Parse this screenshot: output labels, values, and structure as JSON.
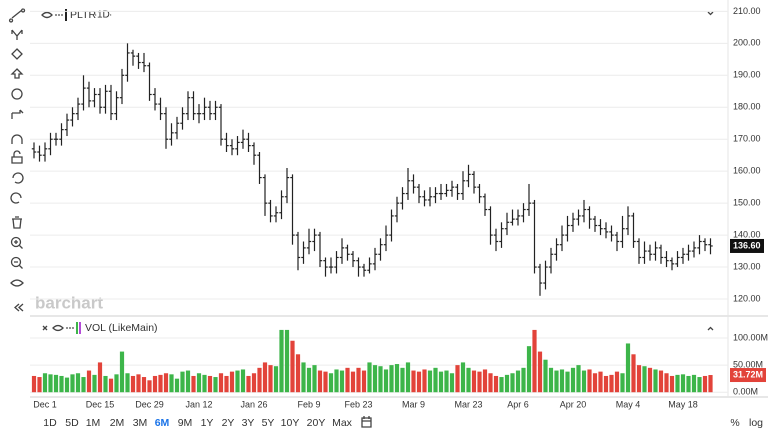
{
  "chart_data": {
    "type": "ohlc_volume",
    "symbol": "PLTR",
    "interval": "1D",
    "watermark": "barchart",
    "categories": [
      null,
      null,
      "Dec 1",
      null,
      null,
      null,
      null,
      null,
      null,
      null,
      null,
      null,
      "Dec 15",
      null,
      null,
      null,
      null,
      null,
      null,
      null,
      null,
      "Dec 29",
      null,
      null,
      null,
      null,
      null,
      null,
      null,
      null,
      "Jan 12",
      null,
      null,
      null,
      null,
      null,
      null,
      null,
      null,
      null,
      "Jan 26",
      null,
      null,
      null,
      null,
      null,
      null,
      null,
      null,
      null,
      "Feb 9",
      null,
      null,
      null,
      null,
      null,
      null,
      null,
      null,
      "Feb 23",
      null,
      null,
      null,
      null,
      null,
      null,
      null,
      null,
      null,
      "Mar 9",
      null,
      null,
      null,
      null,
      null,
      null,
      null,
      null,
      null,
      "Mar 23",
      null,
      null,
      null,
      null,
      null,
      null,
      null,
      null,
      "Apr 6",
      null,
      null,
      null,
      null,
      null,
      null,
      null,
      null,
      null,
      "Apr 20",
      null,
      null,
      null,
      null,
      null,
      null,
      null,
      null,
      null,
      "May 4",
      null,
      null,
      null,
      null,
      null,
      null,
      null,
      null,
      null,
      "May 18",
      null,
      null,
      null,
      null,
      null
    ],
    "series": [
      {
        "name": "PLTR",
        "color": "#222222",
        "last_label": "136.60",
        "values": [
          [
            167,
            169,
            164,
            166
          ],
          [
            166,
            168,
            163,
            165
          ],
          [
            165,
            169,
            163,
            167
          ],
          [
            167,
            172,
            165,
            170
          ],
          [
            170,
            172,
            168,
            170
          ],
          [
            170,
            175,
            168,
            173
          ],
          [
            173,
            178,
            171,
            176
          ],
          [
            176,
            180,
            174,
            178
          ],
          [
            178,
            183,
            176,
            181
          ],
          [
            181,
            190,
            179,
            186
          ],
          [
            186,
            188,
            180,
            182
          ],
          [
            182,
            186,
            180,
            184
          ],
          [
            184,
            186,
            178,
            180
          ],
          [
            180,
            187,
            178,
            185
          ],
          [
            185,
            187,
            176,
            178
          ],
          [
            178,
            185,
            176,
            183
          ],
          [
            183,
            192,
            181,
            190
          ],
          [
            190,
            200,
            188,
            197
          ],
          [
            197,
            198,
            193,
            196
          ],
          [
            196,
            197,
            192,
            194
          ],
          [
            194,
            197,
            191,
            193
          ],
          [
            193,
            194,
            182,
            184
          ],
          [
            184,
            186,
            179,
            181
          ],
          [
            181,
            183,
            176,
            178
          ],
          [
            178,
            180,
            167,
            170
          ],
          [
            170,
            175,
            168,
            172
          ],
          [
            172,
            177,
            170,
            175
          ],
          [
            175,
            180,
            173,
            178
          ],
          [
            178,
            185,
            176,
            183
          ],
          [
            183,
            185,
            176,
            178
          ],
          [
            178,
            181,
            175,
            178
          ],
          [
            178,
            183,
            176,
            180
          ],
          [
            180,
            182,
            176,
            178
          ],
          [
            178,
            182,
            176,
            180
          ],
          [
            180,
            181,
            168,
            170
          ],
          [
            170,
            172,
            166,
            168
          ],
          [
            168,
            170,
            165,
            167
          ],
          [
            167,
            171,
            165,
            169
          ],
          [
            169,
            173,
            167,
            170
          ],
          [
            170,
            172,
            166,
            168
          ],
          [
            168,
            169,
            162,
            165
          ],
          [
            165,
            166,
            156,
            158
          ],
          [
            158,
            159,
            146,
            150
          ],
          [
            150,
            151,
            144,
            146
          ],
          [
            146,
            149,
            144,
            147
          ],
          [
            147,
            154,
            145,
            152
          ],
          [
            152,
            161,
            150,
            158
          ],
          [
            158,
            159,
            137,
            140
          ],
          [
            140,
            141,
            129,
            133
          ],
          [
            133,
            138,
            131,
            136
          ],
          [
            136,
            142,
            134,
            138
          ],
          [
            138,
            142,
            135,
            140
          ],
          [
            140,
            141,
            130,
            132
          ],
          [
            132,
            133,
            127,
            130
          ],
          [
            130,
            133,
            128,
            130
          ],
          [
            130,
            135,
            128,
            133
          ],
          [
            133,
            139,
            131,
            136
          ],
          [
            136,
            137,
            132,
            134
          ],
          [
            134,
            135,
            130,
            132
          ],
          [
            132,
            133,
            127,
            130
          ],
          [
            130,
            131,
            127,
            129
          ],
          [
            129,
            133,
            128,
            131
          ],
          [
            131,
            136,
            129,
            134
          ],
          [
            134,
            139,
            132,
            137
          ],
          [
            137,
            143,
            135,
            140
          ],
          [
            140,
            148,
            138,
            146
          ],
          [
            146,
            152,
            144,
            150
          ],
          [
            150,
            155,
            148,
            153
          ],
          [
            153,
            161,
            151,
            157
          ],
          [
            157,
            159,
            153,
            155
          ],
          [
            155,
            156,
            150,
            152
          ],
          [
            152,
            154,
            149,
            151
          ],
          [
            151,
            155,
            149,
            152
          ],
          [
            152,
            155,
            150,
            153
          ],
          [
            153,
            156,
            151,
            153
          ],
          [
            153,
            156,
            152,
            154
          ],
          [
            154,
            157,
            152,
            155
          ],
          [
            155,
            156,
            151,
            153
          ],
          [
            153,
            160,
            151,
            157
          ],
          [
            157,
            162,
            155,
            159
          ],
          [
            159,
            160,
            153,
            155
          ],
          [
            155,
            156,
            150,
            152
          ],
          [
            152,
            153,
            146,
            148
          ],
          [
            148,
            149,
            137,
            140
          ],
          [
            140,
            142,
            135,
            138
          ],
          [
            138,
            144,
            136,
            142
          ],
          [
            142,
            147,
            140,
            144
          ],
          [
            144,
            148,
            143,
            145
          ],
          [
            145,
            148,
            143,
            146
          ],
          [
            146,
            150,
            144,
            148
          ],
          [
            148,
            156,
            146,
            150
          ],
          [
            150,
            151,
            128,
            130
          ],
          [
            130,
            131,
            121,
            125
          ],
          [
            125,
            132,
            123,
            130
          ],
          [
            130,
            136,
            128,
            134
          ],
          [
            134,
            139,
            132,
            137
          ],
          [
            137,
            143,
            135,
            140
          ],
          [
            140,
            146,
            138,
            143
          ],
          [
            143,
            147,
            141,
            145
          ],
          [
            145,
            148,
            143,
            146
          ],
          [
            146,
            151,
            144,
            148
          ],
          [
            148,
            149,
            142,
            145
          ],
          [
            145,
            146,
            141,
            143
          ],
          [
            143,
            145,
            140,
            142
          ],
          [
            142,
            144,
            139,
            141
          ],
          [
            141,
            143,
            138,
            140
          ],
          [
            140,
            141,
            135,
            138
          ],
          [
            138,
            146,
            136,
            142
          ],
          [
            142,
            149,
            140,
            146
          ],
          [
            146,
            147,
            136,
            138
          ],
          [
            138,
            139,
            131,
            133
          ],
          [
            133,
            138,
            131,
            135
          ],
          [
            135,
            137,
            132,
            134
          ],
          [
            134,
            138,
            132,
            136
          ],
          [
            136,
            137,
            131,
            133
          ],
          [
            133,
            135,
            130,
            132
          ],
          [
            132,
            133,
            129,
            131
          ],
          [
            131,
            135,
            130,
            133
          ],
          [
            133,
            136,
            131,
            134
          ],
          [
            134,
            137,
            132,
            135
          ],
          [
            135,
            138,
            133,
            136
          ],
          [
            136,
            140,
            134,
            138
          ],
          [
            138,
            139,
            135,
            137
          ],
          [
            137,
            139,
            134,
            136.6
          ]
        ]
      },
      {
        "name": "VOL (LikeMain)",
        "axis": "y2",
        "up_color": "#3db54a",
        "down_color": "#e2433a",
        "last_label": "31.72M",
        "values": [
          30,
          28,
          35,
          33,
          32,
          30,
          27,
          33,
          35,
          28,
          40,
          32,
          55,
          30,
          25,
          33,
          75,
          35,
          30,
          33,
          28,
          22,
          30,
          32,
          35,
          33,
          25,
          38,
          40,
          30,
          35,
          32,
          30,
          28,
          35,
          30,
          38,
          40,
          42,
          30,
          35,
          45,
          55,
          50,
          48,
          115,
          115,
          95,
          70,
          55,
          45,
          50,
          40,
          38,
          35,
          42,
          40,
          45,
          38,
          45,
          40,
          55,
          50,
          48,
          42,
          50,
          52,
          45,
          55,
          40,
          38,
          42,
          40,
          45,
          38,
          40,
          35,
          50,
          55,
          45,
          40,
          38,
          42,
          35,
          30,
          28,
          32,
          35,
          40,
          45,
          85,
          115,
          75,
          60,
          45,
          40,
          42,
          38,
          45,
          50,
          40,
          42,
          35,
          38,
          30,
          32,
          38,
          35,
          90,
          70,
          50,
          48,
          45,
          42,
          40,
          35,
          30,
          32,
          33,
          30,
          32,
          28,
          30,
          31.72
        ]
      }
    ],
    "ylim": [
      115,
      212
    ],
    "yticks": [
      {
        "value": 120,
        "label": "120.00"
      },
      {
        "value": 130,
        "label": "130.00"
      },
      {
        "value": 140,
        "label": "140.00"
      },
      {
        "value": 150,
        "label": "150.00"
      },
      {
        "value": 160,
        "label": "160.00"
      },
      {
        "value": 170,
        "label": "170.00"
      },
      {
        "value": 180,
        "label": "180.00"
      },
      {
        "value": 190,
        "label": "190.00"
      },
      {
        "value": 200,
        "label": "200.00"
      },
      {
        "value": 210,
        "label": "210.00"
      }
    ],
    "y2lim": [
      -7,
      137
    ],
    "y2ticks": [
      {
        "value": 0,
        "label": "0.00M"
      },
      {
        "value": 50,
        "label": "50.00M"
      },
      {
        "value": 100,
        "label": "100.00M"
      }
    ],
    "grid": true
  },
  "toolbar": {
    "ranges": [
      "1D",
      "5D",
      "1M",
      "2M",
      "3M",
      "6M",
      "9M",
      "1Y",
      "2Y",
      "3Y",
      "5Y",
      "10Y",
      "20Y",
      "Max"
    ],
    "active": 5,
    "active_color": "#1a73e8",
    "scale_options": [
      "%",
      "log"
    ]
  }
}
